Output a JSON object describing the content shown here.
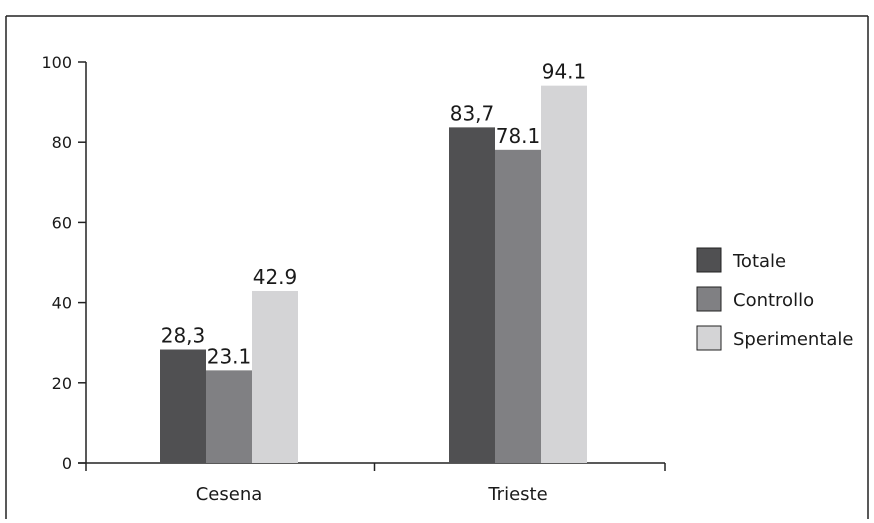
{
  "chart_data": {
    "type": "bar",
    "title": "",
    "xlabel": "",
    "ylabel": "",
    "categories": [
      "Cesena",
      "Trieste"
    ],
    "series": [
      {
        "name": "Totale",
        "values": [
          28.3,
          83.7
        ],
        "labels": [
          "28,3",
          "83,7"
        ],
        "color": "#505052"
      },
      {
        "name": "Controllo",
        "values": [
          23.1,
          78.1
        ],
        "labels": [
          "23.1",
          "78.1"
        ],
        "color": "#808083"
      },
      {
        "name": "Sperimentale",
        "values": [
          42.9,
          94.1
        ],
        "labels": [
          "42.9",
          "94.1"
        ],
        "color": "#d4d4d6"
      }
    ],
    "ylim": [
      0,
      100
    ],
    "yticks": [
      0,
      20,
      40,
      60,
      80,
      100
    ],
    "ytick_labels": [
      "0",
      "20",
      "40",
      "60",
      "80",
      "100"
    ],
    "grid": false,
    "legend_position": "right"
  }
}
